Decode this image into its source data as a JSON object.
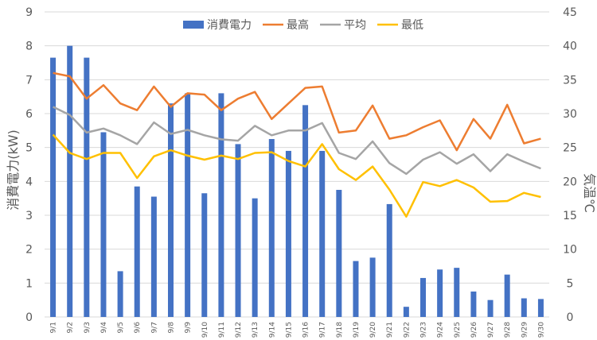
{
  "chart_data": {
    "type": "bar-line-combo",
    "categories": [
      "9/1",
      "9/2",
      "9/3",
      "9/4",
      "9/5",
      "9/6",
      "9/7",
      "9/8",
      "9/9",
      "9/10",
      "9/11",
      "9/12",
      "9/13",
      "9/14",
      "9/15",
      "9/16",
      "9/17",
      "9/18",
      "9/19",
      "9/20",
      "9/21",
      "9/22",
      "9/23",
      "9/24",
      "9/25",
      "9/26",
      "9/27",
      "9/28",
      "9/29",
      "9/30"
    ],
    "ylabel": "消費電力(kW)",
    "y2label": "気温℃",
    "ylim": [
      0,
      9
    ],
    "y2lim": [
      0,
      45
    ],
    "yticks": [
      "0",
      "1",
      "2",
      "3",
      "4",
      "5",
      "6",
      "7",
      "8",
      "9"
    ],
    "y2ticks": [
      "0",
      "5",
      "10",
      "15",
      "20",
      "25",
      "30",
      "35",
      "40",
      "45"
    ],
    "grid": true,
    "legend_position": "top",
    "bar_series": {
      "name": "消費電力",
      "color": "#4472C4",
      "values": [
        7.65,
        8.0,
        7.65,
        5.45,
        1.35,
        3.85,
        3.55,
        6.3,
        6.6,
        3.65,
        6.6,
        5.1,
        3.5,
        5.25,
        4.9,
        6.25,
        4.9,
        3.75,
        1.65,
        1.75,
        3.33,
        0.3,
        1.15,
        1.4,
        1.45,
        0.75,
        0.5,
        1.25,
        0.55,
        0.53
      ]
    },
    "line_series": [
      {
        "name": "最高",
        "color": "#ED7D31",
        "values": [
          36.0,
          35.5,
          32.2,
          34.2,
          31.5,
          30.5,
          34.0,
          31.0,
          33.0,
          32.8,
          30.5,
          32.2,
          33.2,
          29.2,
          31.5,
          33.8,
          34.0,
          27.2,
          27.5,
          31.2,
          26.3,
          26.8,
          28.0,
          29.0,
          24.6,
          29.2,
          26.3,
          31.3,
          25.6,
          26.3
        ]
      },
      {
        "name": "平均",
        "color": "#A5A5A5",
        "values": [
          31.0,
          29.8,
          27.2,
          27.8,
          26.8,
          25.5,
          28.7,
          27.0,
          27.6,
          26.8,
          26.2,
          26.0,
          28.2,
          26.8,
          27.5,
          27.5,
          28.6,
          24.2,
          23.3,
          25.9,
          22.7,
          21.1,
          23.2,
          24.3,
          22.6,
          24.0,
          21.5,
          24.0,
          22.9,
          21.9
        ]
      },
      {
        "name": "最低",
        "color": "#FFC000",
        "values": [
          26.9,
          24.2,
          23.3,
          24.2,
          24.2,
          20.5,
          23.7,
          24.6,
          23.8,
          23.2,
          23.8,
          23.3,
          24.2,
          24.3,
          23.0,
          22.2,
          25.5,
          21.8,
          20.2,
          22.2,
          18.8,
          14.8,
          19.9,
          19.3,
          20.2,
          19.1,
          17.0,
          17.1,
          18.3,
          17.7
        ]
      }
    ]
  }
}
